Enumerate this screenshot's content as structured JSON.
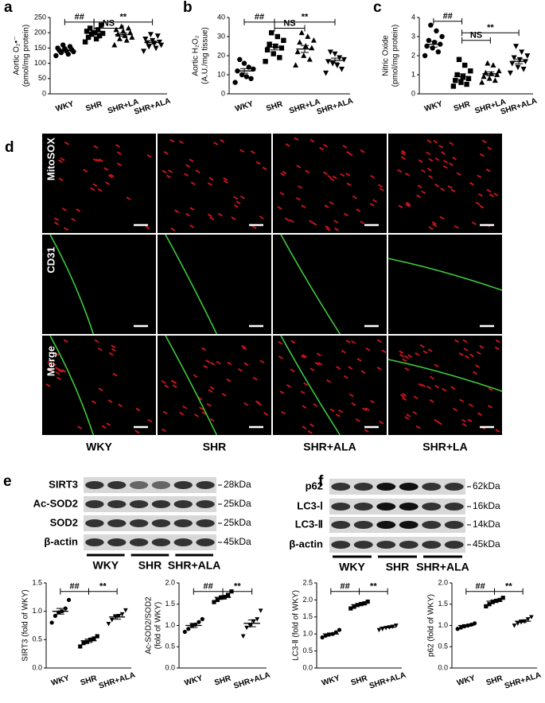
{
  "chart_data": [
    {
      "type": "dotplot",
      "panel": "a",
      "ylabel": [
        "Aortic O₂•⁻",
        "(pmol/mg protein)"
      ],
      "categories": [
        "WKY",
        "SHR",
        "SHR+LA",
        "SHR+ALA"
      ],
      "markers": [
        "circle",
        "square",
        "triangle",
        "triangle-down"
      ],
      "values": [
        [
          125,
          130,
          135,
          138,
          140,
          142,
          145,
          148,
          150,
          155,
          160
        ],
        [
          170,
          180,
          185,
          190,
          195,
          198,
          200,
          205,
          210,
          215,
          225,
          200
        ],
        [
          160,
          175,
          180,
          185,
          190,
          195,
          200,
          205,
          210,
          215,
          220
        ],
        [
          140,
          150,
          155,
          160,
          165,
          168,
          170,
          175,
          180,
          190,
          195
        ]
      ],
      "means": [
        142,
        198,
        194,
        168
      ],
      "errors": [
        3,
        4,
        5,
        5
      ],
      "ylim": [
        0,
        250
      ],
      "yticks": [
        0,
        50,
        100,
        150,
        200,
        250
      ],
      "annotations": [
        "##",
        "NS",
        "**"
      ]
    },
    {
      "type": "dotplot",
      "panel": "b",
      "ylabel": [
        "Aortic H₂O₂",
        "(A.U./mg tissue)"
      ],
      "categories": [
        "WKY",
        "SHR",
        "SHR+LA",
        "SHR+ALA"
      ],
      "markers": [
        "circle",
        "square",
        "triangle",
        "triangle-down"
      ],
      "values": [
        [
          6,
          8,
          9,
          10,
          12,
          13,
          14,
          16,
          18
        ],
        [
          17,
          19,
          21,
          23,
          24,
          25,
          26,
          28,
          30,
          32
        ],
        [
          15,
          18,
          20,
          22,
          24,
          25,
          27,
          28,
          30,
          32
        ],
        [
          11,
          13,
          15,
          16,
          17,
          18,
          19,
          21,
          22
        ]
      ],
      "means": [
        12,
        24.5,
        23.5,
        17.5
      ],
      "errors": [
        1.2,
        1.5,
        1.8,
        1.2
      ],
      "ylim": [
        0,
        40
      ],
      "yticks": [
        0,
        10,
        20,
        30,
        40
      ],
      "annotations": [
        "##",
        "NS",
        "**"
      ]
    },
    {
      "type": "dotplot",
      "panel": "c",
      "ylabel": [
        "Nitric Oxide",
        "(pmol/mg protein)"
      ],
      "categories": [
        "WKY",
        "SHR",
        "SHR+LA",
        "SHR+ALA"
      ],
      "markers": [
        "circle",
        "square",
        "triangle",
        "triangle-down"
      ],
      "values": [
        [
          2.0,
          2.2,
          2.4,
          2.5,
          2.6,
          2.7,
          2.8,
          3.0,
          3.3,
          3.6
        ],
        [
          0.4,
          0.5,
          0.6,
          0.7,
          0.8,
          0.9,
          1.0,
          1.2,
          1.5,
          1.8
        ],
        [
          0.6,
          0.7,
          0.8,
          0.9,
          1.0,
          1.05,
          1.1,
          1.2,
          1.5,
          1.6
        ],
        [
          1.1,
          1.3,
          1.4,
          1.6,
          1.7,
          1.8,
          1.9,
          2.0,
          2.2,
          2.5
        ]
      ],
      "means": [
        2.6,
        0.9,
        1.05,
        1.7
      ],
      "errors": [
        0.15,
        0.15,
        0.1,
        0.12
      ],
      "ylim": [
        0,
        4
      ],
      "yticks": [
        0,
        1,
        2,
        3,
        4
      ],
      "annotations": [
        "##",
        "NS",
        "**"
      ]
    },
    {
      "type": "dotplot",
      "ylabel": [
        "SIRT3 (fold of WKY)"
      ],
      "categories": [
        "WKY",
        "SHR",
        "SHR+ALA"
      ],
      "markers": [
        "circle",
        "square",
        "triangle-down"
      ],
      "values": [
        [
          0.8,
          0.92,
          0.98,
          1.0,
          1.05,
          1.2
        ],
        [
          0.38,
          0.44,
          0.46,
          0.5,
          0.52,
          0.56
        ],
        [
          0.78,
          0.85,
          0.9,
          0.92,
          0.95,
          1.02
        ]
      ],
      "means": [
        1.0,
        0.48,
        0.9
      ],
      "errors": [
        0.05,
        0.03,
        0.04
      ],
      "ylim": [
        0,
        1.5
      ],
      "yticks": [
        {
          "value": 0,
          "label": "0.0"
        },
        0.5,
        {
          "value": 1,
          "label": "1.0"
        },
        1.5
      ],
      "annotations": [
        "##",
        "**"
      ]
    },
    {
      "type": "dotplot",
      "ylabel": [
        "Ac-SOD2/SOD2",
        "(fold of WKY)"
      ],
      "categories": [
        "WKY",
        "SHR",
        "SHR+ALA"
      ],
      "markers": [
        "circle",
        "square",
        "triangle-down"
      ],
      "values": [
        [
          0.85,
          0.92,
          1.0,
          1.02,
          1.08,
          1.15
        ],
        [
          1.55,
          1.6,
          1.65,
          1.67,
          1.72,
          1.8
        ],
        [
          0.75,
          0.95,
          1.0,
          1.1,
          1.15,
          1.35
        ]
      ],
      "means": [
        1.0,
        1.66,
        1.05
      ],
      "errors": [
        0.05,
        0.04,
        0.08
      ],
      "ylim": [
        0,
        2
      ],
      "yticks": [
        {
          "value": 0,
          "label": "0.0"
        },
        0.5,
        {
          "value": 1,
          "label": "1.0"
        },
        1.5,
        {
          "value": 2,
          "label": "2.0"
        }
      ],
      "annotations": [
        "##",
        "**"
      ]
    },
    {
      "type": "dotplot",
      "ylabel": [
        "LC3-Ⅱ (fold of WKY)"
      ],
      "categories": [
        "WKY",
        "SHR",
        "SHR+ALA"
      ],
      "markers": [
        "circle",
        "square",
        "triangle-down"
      ],
      "values": [
        [
          0.9,
          0.95,
          0.98,
          1.0,
          1.05,
          1.12
        ],
        [
          1.75,
          1.8,
          1.85,
          1.88,
          1.9,
          1.95
        ],
        [
          1.12,
          1.15,
          1.18,
          1.2,
          1.22,
          1.25
        ]
      ],
      "means": [
        1.0,
        1.86,
        1.2
      ],
      "errors": [
        0.03,
        0.03,
        0.02
      ],
      "ylim": [
        0,
        2.5
      ],
      "yticks": [
        {
          "value": 0,
          "label": "0.0"
        },
        0.5,
        {
          "value": 1,
          "label": "1.0"
        },
        1.5,
        {
          "value": 2,
          "label": "2.0"
        },
        2.5
      ],
      "annotations": [
        "##",
        "**"
      ]
    },
    {
      "type": "dotplot",
      "ylabel": [
        "p62 (fold of WKY)"
      ],
      "categories": [
        "WKY",
        "SHR",
        "SHR+ALA"
      ],
      "markers": [
        "circle",
        "square",
        "triangle-down"
      ],
      "values": [
        [
          0.92,
          0.95,
          0.98,
          1.0,
          1.02,
          1.05
        ],
        [
          1.45,
          1.5,
          1.55,
          1.58,
          1.6,
          1.65
        ],
        [
          1.0,
          1.05,
          1.08,
          1.1,
          1.15,
          1.2
        ]
      ],
      "means": [
        1.0,
        1.57,
        1.1
      ],
      "errors": [
        0.02,
        0.03,
        0.03
      ],
      "ylim": [
        0,
        2
      ],
      "yticks": [
        {
          "value": 0,
          "label": "0.0"
        },
        0.5,
        {
          "value": 1,
          "label": "1.0"
        },
        1.5,
        {
          "value": 2,
          "label": "2.0"
        }
      ],
      "annotations": [
        "##",
        "**"
      ]
    }
  ],
  "panel_d": {
    "panel": "d",
    "rows": [
      "MitoSOX",
      "CD31",
      "Merge"
    ],
    "columns": [
      "WKY",
      "SHR",
      "SHR+ALA",
      "SHR+LA"
    ]
  },
  "panel_e": {
    "panel": "e",
    "bands": [
      "SIRT3",
      "Ac-SOD2",
      "SOD2",
      "β-actin"
    ],
    "sizes": [
      "28kDa",
      "25kDa",
      "25kDa",
      "45kDa"
    ],
    "groups": [
      "WKY",
      "SHR",
      "SHR+ALA"
    ]
  },
  "panel_f": {
    "panel": "f",
    "bands": [
      "p62",
      "LC3-Ⅰ",
      "LC3-Ⅱ",
      "β-actin"
    ],
    "sizes": [
      "62kDa",
      "16kDa",
      "14kDa",
      "45kDa"
    ],
    "groups": [
      "WKY",
      "SHR",
      "SHR+ALA"
    ]
  }
}
